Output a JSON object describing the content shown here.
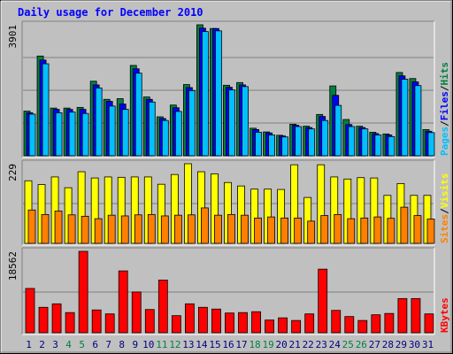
{
  "chart_data": {
    "type": "bar",
    "title": "Daily usage for December 2010",
    "categories": [
      "1",
      "2",
      "3",
      "4",
      "5",
      "6",
      "7",
      "8",
      "9",
      "10",
      "11",
      "12",
      "13",
      "14",
      "15",
      "16",
      "17",
      "18",
      "19",
      "20",
      "21",
      "22",
      "23",
      "24",
      "25",
      "26",
      "27",
      "28",
      "29",
      "30",
      "31"
    ],
    "weekend_days": [
      "4",
      "5",
      "11",
      "12",
      "18",
      "19",
      "25",
      "26"
    ],
    "panels": [
      {
        "name": "hits-files-pages",
        "ymax_label": "3901",
        "ymax": 3901,
        "ylim": [
          0,
          3901
        ],
        "legend": [
          {
            "text": "Pages",
            "color": "#00c0ff"
          },
          {
            "text": "/",
            "color": "#000000"
          },
          {
            "text": "Files",
            "color": "#0000ff"
          },
          {
            "text": "/",
            "color": "#000000"
          },
          {
            "text": "Hits",
            "color": "#008040"
          }
        ],
        "series": [
          {
            "name": "Hits",
            "color": "#008040",
            "values": [
              1330,
              2970,
              1420,
              1420,
              1440,
              2220,
              1680,
              1700,
              2690,
              1750,
              1160,
              1510,
              2120,
              3901,
              3790,
              2100,
              2180,
              820,
              710,
              610,
              940,
              880,
              1230,
              2080,
              1080,
              880,
              700,
              650,
              2480,
              2300,
              780
            ]
          },
          {
            "name": "Files",
            "color": "#0000ff",
            "values": [
              1280,
              2850,
              1380,
              1380,
              1380,
              2110,
              1620,
              1540,
              2590,
              1680,
              1110,
              1430,
              2030,
              3800,
              3790,
              2040,
              2110,
              780,
              680,
              590,
              910,
              840,
              1170,
              1800,
              930,
              840,
              660,
              620,
              2380,
              2200,
              730
            ]
          },
          {
            "name": "Pages",
            "color": "#00c0ff",
            "values": [
              1240,
              2740,
              1280,
              1300,
              1260,
              2020,
              1480,
              1380,
              2460,
              1600,
              1050,
              1320,
              1940,
              3700,
              3720,
              1960,
              2060,
              700,
              620,
              560,
              870,
              800,
              1050,
              1500,
              870,
              800,
              620,
              570,
              2280,
              2090,
              690
            ]
          }
        ]
      },
      {
        "name": "visits-sites",
        "ymax_label": "229",
        "ymax": 229,
        "ylim": [
          0,
          229
        ],
        "legend": [
          {
            "text": "Sites",
            "color": "#ff8000"
          },
          {
            "text": "/",
            "color": "#000000"
          },
          {
            "text": "Visits",
            "color": "#ffff00"
          }
        ],
        "series": [
          {
            "name": "Visits",
            "color": "#ffff00",
            "values": [
              180,
              169,
              191,
              160,
              206,
              188,
              191,
              190,
              191,
              191,
              170,
              198,
              229,
              206,
              200,
              175,
              165,
              156,
              156,
              155,
              226,
              132,
              226,
              191,
              185,
              189,
              188,
              138,
              172,
              138,
              138
            ]
          },
          {
            "name": "Sites",
            "color": "#ff8000",
            "values": [
              96,
              83,
              93,
              82,
              78,
              71,
              81,
              79,
              82,
              83,
              79,
              81,
              82,
              102,
              81,
              83,
              81,
              73,
              76,
              73,
              73,
              64,
              80,
              83,
              71,
              73,
              76,
              72,
              104,
              80,
              70
            ]
          }
        ]
      },
      {
        "name": "kbytes",
        "ymax_label": "18562",
        "ymax": 18562,
        "ylim": [
          0,
          18562
        ],
        "legend": [
          {
            "text": "KBytes",
            "color": "#ff0000"
          }
        ],
        "series": [
          {
            "name": "KBytes",
            "color": "#ff0000",
            "values": [
              10100,
              5800,
              6600,
              4600,
              18562,
              5200,
              4300,
              14100,
              9300,
              5300,
              12000,
              3900,
              6600,
              5800,
              5400,
              4500,
              4600,
              4800,
              2900,
              3400,
              2800,
              4300,
              14500,
              5100,
              3700,
              2800,
              4100,
              4400,
              7800,
              7800,
              4300
            ]
          }
        ]
      }
    ]
  },
  "colors": {
    "background": "#c0c0c0",
    "title": "#0000ff",
    "weekday_label": "#000080",
    "weekend_label": "#008040"
  }
}
